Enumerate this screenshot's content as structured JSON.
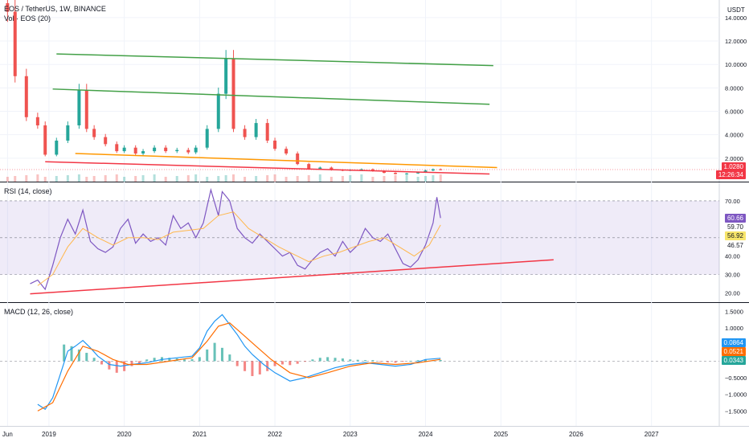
{
  "header": {
    "symbol_title": "EOS / TetherUS, 1W, BINANCE",
    "volume_label": "Vol · EOS (20)",
    "currency": "USDT"
  },
  "price_pane": {
    "last_price": "1.0280",
    "countdown": "12:26:34"
  },
  "rsi_pane": {
    "label": "RSI (14, close)",
    "value_labels": [
      "60.66",
      "59.70",
      "56.92",
      "46.57"
    ]
  },
  "macd_pane": {
    "label": "MACD (12, 26, close)",
    "value_labels": [
      "0.0864",
      "0.0521",
      "0.0343"
    ]
  },
  "time_axis": [
    "Jun",
    "2019",
    "2020",
    "2021",
    "2022",
    "2023",
    "2024",
    "2025",
    "2026",
    "2027"
  ],
  "colors": {
    "up": "#26a69a",
    "down": "#ef5350",
    "rsi": "#7e57c2",
    "rsi_band": "#7e57c2",
    "macd": "#2196f3",
    "signal": "#ff6d00",
    "green_line": "#43a047",
    "orange_line": "#ff9800",
    "red_line": "#f23645"
  },
  "chart_data": [
    {
      "type": "candlestick",
      "title": "EOS / TetherUS, 1W, BINANCE",
      "ylabel": "USDT",
      "y_ticks": [
        "14.0000",
        "12.0000",
        "10.0000",
        "8.0000",
        "6.0000",
        "4.0000",
        "2.0000"
      ],
      "ylim": [
        0,
        15.5
      ],
      "xlim": [
        2018.35,
        2027.9
      ],
      "series": [
        {
          "name": "close",
          "x": [
            2018.45,
            2018.55,
            2018.7,
            2018.85,
            2018.95,
            2019.1,
            2019.25,
            2019.4,
            2019.5,
            2019.6,
            2019.75,
            2019.9,
            2020.0,
            2020.15,
            2020.25,
            2020.4,
            2020.55,
            2020.7,
            2020.85,
            2020.95,
            2021.1,
            2021.25,
            2021.35,
            2021.45,
            2021.6,
            2021.75,
            2021.9,
            2022.0,
            2022.15,
            2022.3,
            2022.45,
            2022.6,
            2022.75,
            2022.9,
            2023.0,
            2023.15,
            2023.3,
            2023.45,
            2023.6,
            2023.75,
            2023.9,
            2024.0,
            2024.1,
            2024.2
          ],
          "values": [
            14.5,
            9.0,
            5.5,
            4.8,
            2.3,
            3.5,
            4.8,
            7.8,
            4.5,
            3.8,
            3.2,
            2.6,
            2.9,
            2.4,
            2.6,
            2.9,
            2.6,
            2.7,
            2.5,
            2.9,
            4.5,
            7.5,
            10.5,
            4.5,
            3.8,
            5.0,
            3.5,
            2.8,
            2.4,
            1.5,
            1.1,
            1.2,
            1.0,
            0.95,
            1.0,
            1.05,
            0.9,
            0.75,
            0.65,
            0.7,
            0.8,
            0.95,
            1.05,
            1.028
          ]
        }
      ],
      "drawings": [
        {
          "name": "upper-green-line",
          "x": [
            2019.1,
            2024.9
          ],
          "y": [
            10.9,
            9.9
          ]
        },
        {
          "name": "middle-green-line",
          "x": [
            2019.05,
            2024.85
          ],
          "y": [
            7.9,
            6.6
          ]
        },
        {
          "name": "orange-support-line",
          "x": [
            2019.35,
            2024.95
          ],
          "y": [
            2.4,
            1.2
          ]
        },
        {
          "name": "red-support-line",
          "x": [
            2018.95,
            2024.85
          ],
          "y": [
            1.7,
            0.65
          ]
        }
      ]
    },
    {
      "type": "line",
      "title": "RSI (14, close)",
      "y_ticks": [
        "70.00",
        "60.00",
        "50.00",
        "40.00",
        "30.00",
        "20.00"
      ],
      "ylim": [
        15,
        80
      ],
      "band": [
        30,
        70
      ],
      "series": [
        {
          "name": "RSI",
          "x": [
            2018.75,
            2018.85,
            2018.95,
            2019.05,
            2019.15,
            2019.25,
            2019.35,
            2019.45,
            2019.55,
            2019.65,
            2019.75,
            2019.85,
            2019.95,
            2020.05,
            2020.15,
            2020.25,
            2020.35,
            2020.45,
            2020.55,
            2020.65,
            2020.75,
            2020.85,
            2020.95,
            2021.05,
            2021.15,
            2021.25,
            2021.3,
            2021.4,
            2021.5,
            2021.6,
            2021.7,
            2021.8,
            2021.9,
            2022.0,
            2022.1,
            2022.2,
            2022.3,
            2022.4,
            2022.5,
            2022.6,
            2022.7,
            2022.8,
            2022.9,
            2023.0,
            2023.1,
            2023.2,
            2023.3,
            2023.4,
            2023.5,
            2023.6,
            2023.7,
            2023.8,
            2023.9,
            2024.0,
            2024.1,
            2024.15,
            2024.2
          ],
          "values": [
            25,
            27,
            22,
            35,
            50,
            60,
            52,
            65,
            48,
            44,
            42,
            45,
            55,
            60,
            47,
            52,
            48,
            50,
            46,
            62,
            55,
            58,
            50,
            58,
            76,
            62,
            75,
            70,
            55,
            50,
            47,
            52,
            48,
            44,
            40,
            42,
            35,
            33,
            38,
            42,
            44,
            40,
            48,
            42,
            46,
            55,
            50,
            48,
            52,
            44,
            36,
            34,
            38,
            46,
            58,
            72,
            60.66
          ]
        },
        {
          "name": "RSI-based MA",
          "x": [
            2018.85,
            2019.05,
            2019.25,
            2019.45,
            2019.65,
            2019.85,
            2020.05,
            2020.25,
            2020.45,
            2020.65,
            2020.85,
            2021.05,
            2021.25,
            2021.45,
            2021.65,
            2021.85,
            2022.05,
            2022.25,
            2022.45,
            2022.65,
            2022.85,
            2023.05,
            2023.25,
            2023.45,
            2023.65,
            2023.85,
            2024.05,
            2024.2
          ],
          "values": [
            24,
            30,
            45,
            55,
            50,
            46,
            50,
            50,
            49,
            53,
            54,
            55,
            62,
            64,
            55,
            50,
            45,
            41,
            37,
            40,
            42,
            45,
            48,
            50,
            45,
            40,
            46,
            56.92
          ]
        }
      ],
      "drawings": [
        {
          "name": "rsi-support-line",
          "x": [
            2018.75,
            2025.7
          ],
          "y": [
            19.5,
            38
          ]
        }
      ]
    },
    {
      "type": "line",
      "title": "MACD (12, 26, close)",
      "y_ticks": [
        "1.5000",
        "1.0000",
        "0.5000",
        "0",
        "−0.5000",
        "−1.0000",
        "−1.5000"
      ],
      "ylim": [
        -1.95,
        1.75
      ],
      "series": [
        {
          "name": "MACD",
          "x": [
            2018.85,
            2018.95,
            2019.05,
            2019.15,
            2019.25,
            2019.35,
            2019.45,
            2019.55,
            2019.65,
            2019.8,
            2019.95,
            2020.1,
            2020.3,
            2020.5,
            2020.7,
            2020.9,
            2021.0,
            2021.1,
            2021.2,
            2021.3,
            2021.4,
            2021.5,
            2021.6,
            2021.7,
            2021.85,
            2022.0,
            2022.2,
            2022.4,
            2022.6,
            2022.8,
            2023.0,
            2023.2,
            2023.4,
            2023.6,
            2023.8,
            2024.0,
            2024.2
          ],
          "values": [
            -1.3,
            -1.45,
            -1.1,
            -0.4,
            0.3,
            0.45,
            0.62,
            0.4,
            0.15,
            -0.1,
            -0.15,
            -0.1,
            -0.05,
            0.05,
            0.1,
            0.15,
            0.4,
            0.9,
            1.2,
            1.4,
            1.1,
            0.8,
            0.45,
            0.2,
            -0.1,
            -0.35,
            -0.6,
            -0.5,
            -0.35,
            -0.2,
            -0.1,
            -0.05,
            -0.1,
            -0.15,
            -0.1,
            0.05,
            0.0864
          ]
        },
        {
          "name": "Signal",
          "x": [
            2018.85,
            2019.05,
            2019.25,
            2019.45,
            2019.65,
            2019.85,
            2020.05,
            2020.3,
            2020.6,
            2020.9,
            2021.1,
            2021.25,
            2021.4,
            2021.55,
            2021.75,
            2021.95,
            2022.2,
            2022.45,
            2022.7,
            2023.0,
            2023.3,
            2023.6,
            2023.9,
            2024.2
          ],
          "values": [
            -1.5,
            -1.25,
            -0.3,
            0.45,
            0.3,
            0.05,
            -0.1,
            -0.1,
            0.0,
            0.1,
            0.6,
            1.05,
            1.15,
            0.85,
            0.45,
            0.05,
            -0.35,
            -0.5,
            -0.35,
            -0.15,
            -0.05,
            -0.1,
            -0.05,
            0.0521
          ]
        },
        {
          "name": "Histogram",
          "x": [
            2019.2,
            2019.3,
            2019.4,
            2019.5,
            2019.6,
            2019.7,
            2019.8,
            2019.9,
            2020.0,
            2020.1,
            2020.2,
            2020.3,
            2020.4,
            2020.5,
            2020.6,
            2020.7,
            2020.8,
            2020.9,
            2021.0,
            2021.1,
            2021.2,
            2021.3,
            2021.4,
            2021.5,
            2021.6,
            2021.7,
            2021.8,
            2021.9,
            2022.0,
            2022.1,
            2022.2,
            2022.3,
            2022.4,
            2022.5,
            2022.6,
            2022.7,
            2022.8,
            2022.9,
            2023.0,
            2023.1,
            2023.2,
            2023.3,
            2023.4,
            2023.5,
            2023.6,
            2023.7,
            2023.8,
            2023.9,
            2024.0,
            2024.1,
            2024.2
          ],
          "values": [
            0.5,
            0.45,
            0.35,
            0.25,
            0.1,
            -0.1,
            -0.25,
            -0.35,
            -0.3,
            -0.15,
            -0.08,
            0.05,
            0.1,
            0.12,
            0.1,
            0.08,
            0.05,
            0.06,
            0.12,
            0.35,
            0.55,
            0.4,
            0.2,
            -0.15,
            -0.3,
            -0.45,
            -0.4,
            -0.3,
            -0.15,
            -0.1,
            -0.12,
            -0.08,
            -0.02,
            0.05,
            0.1,
            0.12,
            0.1,
            0.08,
            0.05,
            0.04,
            0.03,
            0.03,
            -0.02,
            -0.04,
            -0.05,
            -0.02,
            0.01,
            0.03,
            0.04,
            0.035,
            0.0343
          ]
        }
      ]
    }
  ]
}
